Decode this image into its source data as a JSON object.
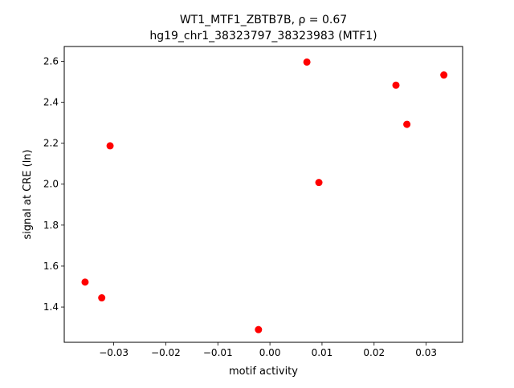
{
  "chart_data": {
    "type": "scatter",
    "title_line1": "WT1_MTF1_ZBTB7B, ρ = 0.67",
    "title_line2": "hg19_chr1_38323797_38323983 (MTF1)",
    "xlabel": "motif activity",
    "ylabel": "signal at CRE (ln)",
    "xlim": [
      -0.0395,
      0.037
    ],
    "ylim": [
      1.228,
      2.672
    ],
    "xticks": [
      -0.03,
      -0.02,
      -0.01,
      0.0,
      0.01,
      0.02,
      0.03
    ],
    "xtick_labels": [
      "−0.03",
      "−0.02",
      "−0.01",
      "0.00",
      "0.01",
      "0.02",
      "0.03"
    ],
    "yticks": [
      1.4,
      1.6,
      1.8,
      2.0,
      2.2,
      2.4,
      2.6
    ],
    "ytick_labels": [
      "1.4",
      "1.6",
      "1.8",
      "2.0",
      "2.2",
      "2.4",
      "2.6"
    ],
    "grid": false,
    "marker_color": "#ff0000",
    "points": [
      {
        "x": -0.0355,
        "y": 1.522
      },
      {
        "x": -0.0323,
        "y": 1.445
      },
      {
        "x": -0.0307,
        "y": 2.187
      },
      {
        "x": -0.0022,
        "y": 1.29
      },
      {
        "x": 0.0071,
        "y": 2.596
      },
      {
        "x": 0.0094,
        "y": 2.008
      },
      {
        "x": 0.0242,
        "y": 2.483
      },
      {
        "x": 0.0263,
        "y": 2.292
      },
      {
        "x": 0.0334,
        "y": 2.533
      }
    ]
  }
}
